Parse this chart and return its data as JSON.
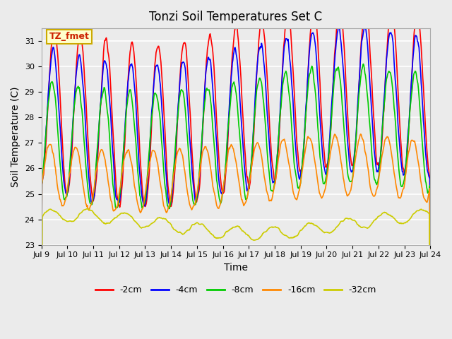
{
  "title": "Tonzi Soil Temperatures Set C",
  "xlabel": "Time",
  "ylabel": "Soil Temperature (C)",
  "ylim": [
    23.0,
    31.5
  ],
  "yticks": [
    23.0,
    24.0,
    25.0,
    26.0,
    27.0,
    28.0,
    29.0,
    30.0,
    31.0
  ],
  "series_colors": {
    "-2cm": "#ff0000",
    "-4cm": "#0000ff",
    "-8cm": "#00cc00",
    "-16cm": "#ff8800",
    "-32cm": "#cccc00"
  },
  "legend_label": "TZ_fmet",
  "legend_label_color": "#cc2200",
  "legend_label_bg": "#ffffcc",
  "legend_label_border": "#ccaa00",
  "plot_bg_color": "#ebebeb",
  "grid_color": "#ffffff",
  "xtick_labels": [
    "Jul 9",
    "Jul 10",
    "Jul 11",
    "Jul 12",
    "Jul 13",
    "Jul 14",
    "Jul 15",
    "Jul 16",
    "Jul 17",
    "Jul 18",
    "Jul 19",
    "Jul 20",
    "Jul 21",
    "Jul 22",
    "Jul 23",
    "Jul 24"
  ],
  "n_days": 15,
  "n_ticks": 16
}
